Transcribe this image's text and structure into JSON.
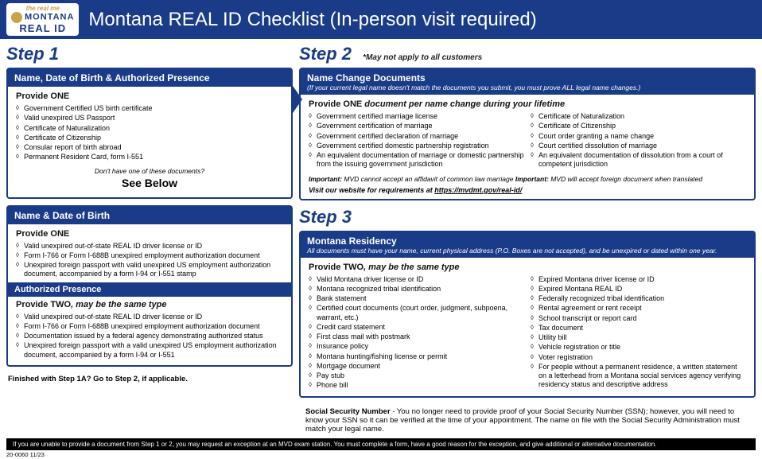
{
  "colors": {
    "brand": "#1a3b87",
    "gold": "#c9a34a"
  },
  "logo": {
    "tag": "the real me",
    "mt": "MONTANA",
    "realid": "REAL ID"
  },
  "header_title": "Montana REAL ID Checklist (In-person visit required)",
  "step1": {
    "label": "Step 1",
    "card1": {
      "title": "Name, Date of Birth & Authorized Presence",
      "provide": "Provide ONE",
      "items": [
        "Government Certified US birth certificate",
        "Valid unexpired US Passport",
        "Certificate of Naturalization",
        "Certificate of Citizenship",
        "Consular report of birth abroad",
        "Permanent Resident Card, form I-551"
      ],
      "note": "Don't have one of these documents?",
      "see_below": "See Below"
    },
    "card2a": {
      "title": "Name & Date of Birth",
      "provide": "Provide ONE",
      "items": [
        "Valid unexpired out-of-state REAL ID driver license or ID",
        "Form I-766 or Form I-688B unexpired employment authorization document",
        "Unexpired foreign passport with valid unexpired US employment authorization document, accompanied by a form I-94 or I-551 stamp"
      ]
    },
    "card2b": {
      "title": "Authorized Presence",
      "provide_a": "Provide TWO",
      "provide_b": ", may be the same type",
      "items": [
        "Valid unexpired out-of-state REAL ID driver license or ID",
        "Form I-766 or Form I-688B unexpired employment authorization document",
        "Documentation issued by a federal agency demonstrating authorized status",
        "Unexpired foreign passport with a valid unexpired US employment authorization document, accompanied by a form I-94 or I-551"
      ]
    },
    "finished": "Finished with Step 1A? Go to Step 2, if applicable."
  },
  "step2": {
    "label": "Step 2",
    "note": "*May not apply to all customers",
    "card": {
      "title": "Name Change Documents",
      "sub": "(If your current legal name doesn't match the documents you submit, you must prove ALL legal name changes.)",
      "provide_a": "Provide ONE",
      "provide_b": " document per name change during your lifetime",
      "left": [
        "Government certified marriage license",
        "Government certification of marriage",
        "Government certified declaration of marriage",
        "Government certified domestic partnership registration",
        "An equivalent documentation of marriage or domestic partnership from the issuing government jurisdiction"
      ],
      "right": [
        "Certificate of Naturalization",
        "Certificate of Citizenship",
        "Court order granting a name change",
        "Court certified dissolution of marriage",
        "An equivalent documentation of dissolution from a court of competent jurisdiction"
      ],
      "important1a": "Important:",
      "important1b": " MVD cannot accept an affidavit of common law marriage ",
      "important2a": "Important:",
      "important2b": " MVD will accept foreign document when translated",
      "visit_a": "Visit our website for requirements at ",
      "visit_url": "https://mvdmt.gov/real-id/"
    }
  },
  "step3": {
    "label": "Step 3",
    "card": {
      "title": "Montana Residency",
      "sub": "All documents must have your name, current physical address (P.O. Boxes are not accepted), and be unexpired or dated within one year.",
      "provide_a": "Provide TWO",
      "provide_b": ", may be the same type",
      "left": [
        "Valid Montana driver license or ID",
        "Montana recognized tribal identification",
        "Bank statement",
        "Certified court documents (court order, judgment, subpoena, warrant, etc.)",
        "Credit card statement",
        "First class mail with postmark",
        "Insurance policy",
        "Montana hunting/fishing license or permit",
        "Mortgage document",
        "Pay stub",
        "Phone bill"
      ],
      "right": [
        "Expired Montana driver license or ID",
        "Expired Montana REAL ID",
        "Federally recognized tribal identification",
        "Rental agreement or rent receipt",
        "School transcript or report card",
        "Tax document",
        "Utility bill",
        "Vehicle registration or title",
        "Voter registration",
        "For people without a permanent residence, a written statement on a letterhead from a Montana social services agency verifying residency status and descriptive address"
      ]
    }
  },
  "ssn": {
    "label": "Social Security Number",
    "text": " - You no longer need to provide proof of your Social Security Number (SSN); however, you will need to know your SSN so it can be verified at the time of your appointment. The name on file with the Social Security Administration must match your legal name."
  },
  "footer": "If you are unable to provide a document from Step 1 or 2, you may request an exception at an MVD exam station. You must complete a form, have a good reason for the exception, and give additional or alternative documentation.",
  "doc_id": "20-0060 11/23"
}
